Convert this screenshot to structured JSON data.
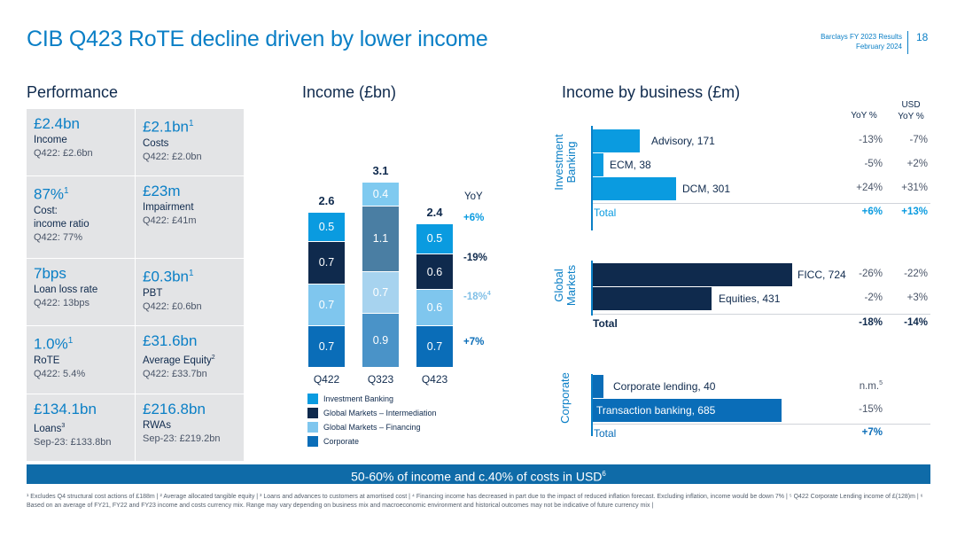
{
  "title": "CIB Q423 RoTE decline driven by lower income",
  "header": {
    "line1": "Barclays FY 2023 Results",
    "line2": "February 2024",
    "page": "18"
  },
  "performance": {
    "title": "Performance",
    "cells": [
      {
        "big": "£2.4bn",
        "big_sup": "",
        "label": "Income",
        "label_sup": "",
        "label2": "",
        "sub": "Q422: £2.6bn"
      },
      {
        "big": "£2.1bn",
        "big_sup": "1",
        "label": "Costs",
        "label_sup": "",
        "label2": "",
        "sub": "Q422: £2.0bn"
      },
      {
        "big": "87%",
        "big_sup": "1",
        "label": "Cost:",
        "label_sup": "",
        "label2": "income ratio",
        "sub": "Q422: 77%"
      },
      {
        "big": "£23m",
        "big_sup": "",
        "label": "Impairment",
        "label_sup": "",
        "label2": "",
        "sub": "Q422: £41m"
      },
      {
        "big": "7bps",
        "big_sup": "",
        "label": "Loan loss rate",
        "label_sup": "",
        "label2": "",
        "sub": "Q422: 13bps"
      },
      {
        "big": "£0.3bn",
        "big_sup": "1",
        "label": "PBT",
        "label_sup": "",
        "label2": "",
        "sub": "Q422: £0.6bn"
      },
      {
        "big": "1.0%",
        "big_sup": "1",
        "label": "RoTE",
        "label_sup": "",
        "label2": "",
        "sub": "Q422: 5.4%"
      },
      {
        "big": "£31.6bn",
        "big_sup": "",
        "label": "Average Equity",
        "label_sup": "2",
        "label2": "",
        "sub": "Q422: £33.7bn"
      },
      {
        "big": "£134.1bn",
        "big_sup": "",
        "label": "Loans",
        "label_sup": "3",
        "label2": "",
        "sub": "Sep-23: £133.8bn"
      },
      {
        "big": "£216.8bn",
        "big_sup": "",
        "label": "RWAs",
        "label_sup": "",
        "label2": "",
        "sub": "Sep-23: £219.2bn"
      }
    ]
  },
  "income_chart": {
    "title": "Income (£bn)",
    "yoy_header": "YoY",
    "yoy": [
      {
        "text": "+6%",
        "sup": "",
        "color": "#0a9be0"
      },
      {
        "text": "-19%",
        "sup": "",
        "color": "#0f2a4d"
      },
      {
        "text": "-18%",
        "sup": "4",
        "color": "#7fbfe6"
      },
      {
        "text": "+7%",
        "sup": "",
        "color": "#0a6db8"
      }
    ]
  },
  "chart_data": {
    "type": "bar",
    "stacked": true,
    "categories": [
      "Q422",
      "Q323",
      "Q423"
    ],
    "totals": [
      "2.6",
      "3.1",
      "2.4"
    ],
    "series": [
      {
        "name": "Corporate",
        "color": "#0a6db8",
        "values": [
          0.7,
          0.9,
          0.7
        ]
      },
      {
        "name": "Global Markets – Financing",
        "color": "#7fc6ee",
        "values": [
          0.7,
          0.7,
          0.6
        ]
      },
      {
        "name": "Global Markets – Intermediation",
        "color": "#0f2a4d",
        "values": [
          0.7,
          1.1,
          0.6
        ]
      },
      {
        "name": "Investment Banking",
        "color": "#0a9be0",
        "values": [
          0.5,
          0.4,
          0.5
        ]
      }
    ],
    "q323_colors": [
      "#4a93c8",
      "#a7d3ef",
      "#4a7ea3",
      "#7fcaf0"
    ],
    "legend_order": [
      "Investment Banking",
      "Global Markets – Intermediation",
      "Global Markets – Financing",
      "Corporate"
    ]
  },
  "business": {
    "title": "Income by business (£m)",
    "col_yoy": "YoY %",
    "col_usd1": "USD",
    "col_usd2": "YoY %",
    "groups": [
      {
        "name1": "Investment",
        "name2": "Banking",
        "rows": [
          {
            "label": "Advisory, 171",
            "value": 171,
            "yoy": "-13%",
            "usd": "-7%",
            "sup": ""
          },
          {
            "label": "ECM, 38",
            "value": 38,
            "yoy": "-5%",
            "usd": "+2%",
            "sup": ""
          },
          {
            "label": "DCM, 301",
            "value": 301,
            "yoy": "+24%",
            "usd": "+31%",
            "sup": ""
          }
        ],
        "total_label": "Total",
        "total_yoy": "+6%",
        "total_usd": "+13%",
        "color": "#0a9be0",
        "total_color": "#0a9be0"
      },
      {
        "name1": "Global",
        "name2": "Markets",
        "rows": [
          {
            "label": "FICC, 724",
            "value": 724,
            "yoy": "-26%",
            "usd": "-22%",
            "sup": ""
          },
          {
            "label": "Equities, 431",
            "value": 431,
            "yoy": "-2%",
            "usd": "+3%",
            "sup": ""
          }
        ],
        "total_label": "Total",
        "total_yoy": "-18%",
        "total_usd": "-14%",
        "color": "#0f2a4d",
        "total_color": "#0f2a4d"
      },
      {
        "name1": "Corporate",
        "name2": "",
        "rows": [
          {
            "label": "Corporate lending, 40",
            "value": 40,
            "yoy": "n.m.",
            "usd": "",
            "sup": "5"
          },
          {
            "label": "Transaction banking, 685",
            "value": 685,
            "yoy": "-15%",
            "usd": "",
            "sup": ""
          }
        ],
        "total_label": "Total",
        "total_yoy": "+7%",
        "total_usd": "",
        "color": "#0a6db8",
        "total_color": "#0a6db8"
      }
    ]
  },
  "banner": {
    "text": "50-60% of income and c.40% of costs in USD",
    "sup": "6"
  },
  "footnote": "¹ Excludes Q4 structural cost actions of £188m | ² Average allocated tangible equity | ³ Loans and advances to customers at amortised cost | ⁴ Financing income has decreased in part due to the impact of reduced inflation forecast. Excluding inflation, income would be down 7% | ⁵ Q422 Corporate Lending income of £(128)m | ⁶ Based on an average of FY21, FY22 and FY23 income and costs currency mix. Range may vary depending on business mix and macroeconomic environment and historical outcomes may not be indicative of future currency mix |"
}
